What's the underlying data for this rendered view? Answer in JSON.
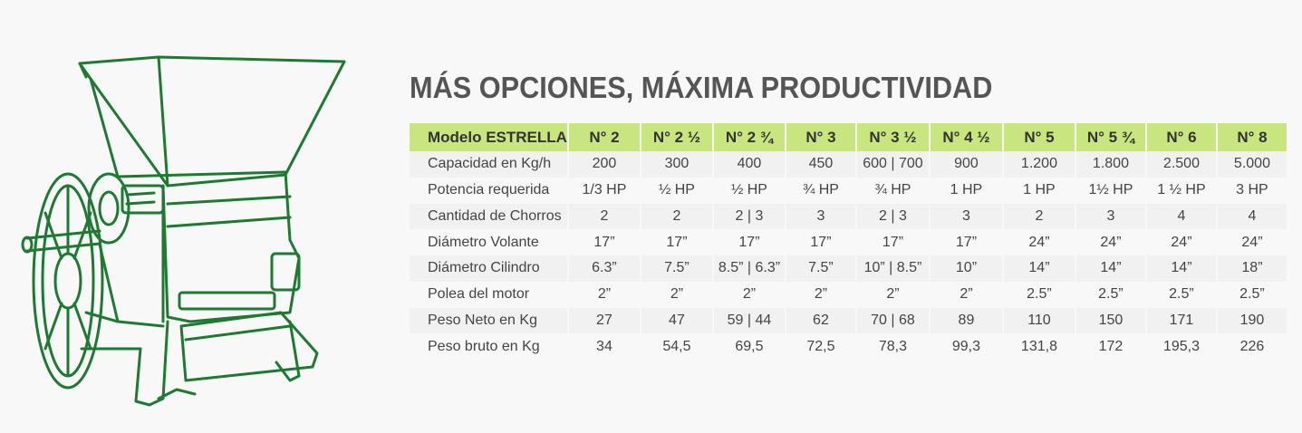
{
  "title": "MÁS OPCIONES, MÁXIMA PRODUCTIVIDAD",
  "illustration": {
    "icon": "coffee-pulper-machine-icon",
    "color": "#1e7a32"
  },
  "colors": {
    "header_bg": "#c9e57f",
    "title": "#555555",
    "row_alt": "#f1f1f1"
  },
  "table": {
    "header": [
      "Modelo ESTRELLA",
      "N° 2",
      "N° 2 ½",
      "N° 2 ¾",
      "N° 3",
      "N° 3 ½",
      "N° 4 ½",
      "N° 5",
      "N° 5 ¾",
      "N° 6",
      "N° 8"
    ],
    "rows": [
      [
        "Capacidad en Kg/h",
        "200",
        "300",
        "400",
        "450",
        "600 | 700",
        "900",
        "1.200",
        "1.800",
        "2.500",
        "5.000"
      ],
      [
        "Potencia requerida",
        "1/3 HP",
        "½ HP",
        "½ HP",
        "¾ HP",
        "¾ HP",
        "1 HP",
        "1 HP",
        "1½ HP",
        "1 ½ HP",
        "3 HP"
      ],
      [
        "Cantidad de Chorros",
        "2",
        "2",
        "2 | 3",
        "3",
        "2 | 3",
        "3",
        "2",
        "3",
        "4",
        "4"
      ],
      [
        "Diámetro Volante",
        "17”",
        "17”",
        "17”",
        "17”",
        "17”",
        "17”",
        "24”",
        "24”",
        "24”",
        "24”"
      ],
      [
        "Diámetro Cilindro",
        "6.3”",
        "7.5”",
        "8.5” | 6.3”",
        "7.5”",
        "10” | 8.5”",
        "10”",
        "14”",
        "14”",
        "14”",
        "18”"
      ],
      [
        "Polea del motor",
        "2”",
        "2”",
        "2”",
        "2”",
        "2”",
        "2”",
        "2.5”",
        "2.5”",
        "2.5”",
        "2.5”"
      ],
      [
        "Peso Neto en Kg",
        "27",
        "47",
        "59 | 44",
        "62",
        "70 | 68",
        "89",
        "110",
        "150",
        "171",
        "190"
      ],
      [
        "Peso bruto en Kg",
        "34",
        "54,5",
        "69,5",
        "72,5",
        "78,3",
        "99,3",
        "131,8",
        "172",
        "195,3",
        "226"
      ]
    ]
  }
}
